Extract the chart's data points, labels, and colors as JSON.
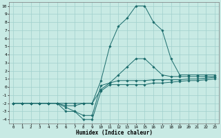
{
  "xlabel": "Humidex (Indice chaleur)",
  "ylabel": "",
  "bg_color": "#c8eae4",
  "grid_color": "#a0d0cc",
  "line_color": "#1a6b6b",
  "xlim": [
    -0.5,
    23.5
  ],
  "ylim": [
    -4.5,
    10.5
  ],
  "xticks": [
    0,
    1,
    2,
    3,
    4,
    5,
    6,
    7,
    8,
    9,
    10,
    11,
    12,
    13,
    14,
    15,
    16,
    17,
    18,
    19,
    20,
    21,
    22,
    23
  ],
  "yticks": [
    -4,
    -3,
    -2,
    -1,
    0,
    1,
    2,
    3,
    4,
    5,
    6,
    7,
    8,
    9,
    10
  ],
  "series": [
    {
      "x": [
        0,
        1,
        2,
        3,
        4,
        5,
        6,
        7,
        8,
        9,
        10,
        11,
        12,
        13,
        14,
        15,
        16,
        17,
        18,
        19,
        20,
        21,
        22,
        23
      ],
      "y": [
        -2,
        -2,
        -2,
        -2,
        -2,
        -2,
        -3,
        -3,
        -4,
        -4,
        -0.5,
        0.3,
        0.3,
        0.3,
        0.3,
        0.3,
        0.5,
        0.5,
        0.6,
        0.7,
        0.8,
        0.8,
        0.9,
        1.0
      ]
    },
    {
      "x": [
        0,
        1,
        2,
        3,
        4,
        5,
        6,
        7,
        8,
        9,
        10,
        11,
        12,
        13,
        14,
        15,
        16,
        17,
        18,
        19,
        20,
        21,
        22,
        23
      ],
      "y": [
        -2,
        -2,
        -2,
        -2,
        -2,
        -2,
        -2.5,
        -3,
        -3.5,
        -3.5,
        0.2,
        0.5,
        0.8,
        0.8,
        0.8,
        0.8,
        0.9,
        0.9,
        0.9,
        0.9,
        1.0,
        1.0,
        1.1,
        1.2
      ]
    },
    {
      "x": [
        0,
        1,
        2,
        3,
        4,
        5,
        6,
        7,
        8,
        9,
        10,
        11,
        12,
        13,
        14,
        15,
        16,
        17,
        18,
        19,
        20,
        21,
        22,
        23
      ],
      "y": [
        -2,
        -2,
        -2,
        -2,
        -2,
        -2,
        -2,
        -2,
        -2,
        -2,
        -0.3,
        0.5,
        1.5,
        2.5,
        3.5,
        3.5,
        2.5,
        1.5,
        1.3,
        1.3,
        1.3,
        1.3,
        1.3,
        1.3
      ]
    },
    {
      "x": [
        0,
        1,
        2,
        3,
        4,
        5,
        6,
        7,
        8,
        9,
        10,
        11,
        12,
        13,
        14,
        15,
        16,
        17,
        18,
        19,
        20,
        21,
        22,
        23
      ],
      "y": [
        -2,
        -2,
        -2,
        -2,
        -2,
        -2,
        -2.3,
        -2.3,
        -2,
        -2,
        0.8,
        5.0,
        7.5,
        8.5,
        10.0,
        10.0,
        8.0,
        7.0,
        3.5,
        1.5,
        1.5,
        1.5,
        1.5,
        1.5
      ]
    }
  ]
}
